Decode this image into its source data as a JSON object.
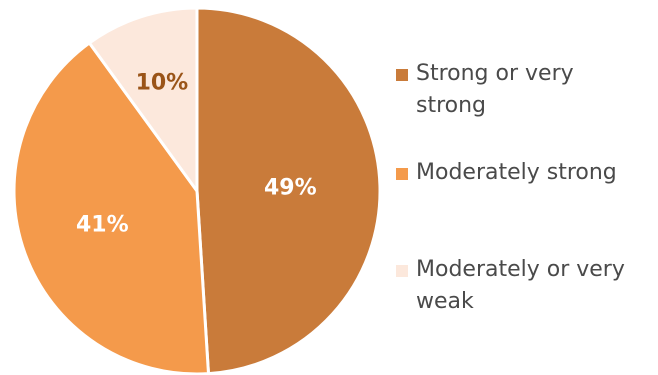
{
  "chart_data": {
    "type": "pie",
    "slices": [
      {
        "label": "Strong or very strong",
        "value": 49,
        "display": "49%",
        "color": "#C97B3A",
        "label_color": "#ffffff"
      },
      {
        "label": "Moderately strong",
        "value": 41,
        "display": "41%",
        "color": "#F49A4B",
        "label_color": "#ffffff"
      },
      {
        "label": "Moderately or very weak",
        "value": 10,
        "display": "10%",
        "color": "#FCE8DC",
        "label_color": "#9A5418"
      }
    ],
    "legend": {
      "position": "right",
      "entries": [
        "Strong or very strong",
        "Moderately strong",
        "Moderately or very weak"
      ]
    }
  }
}
